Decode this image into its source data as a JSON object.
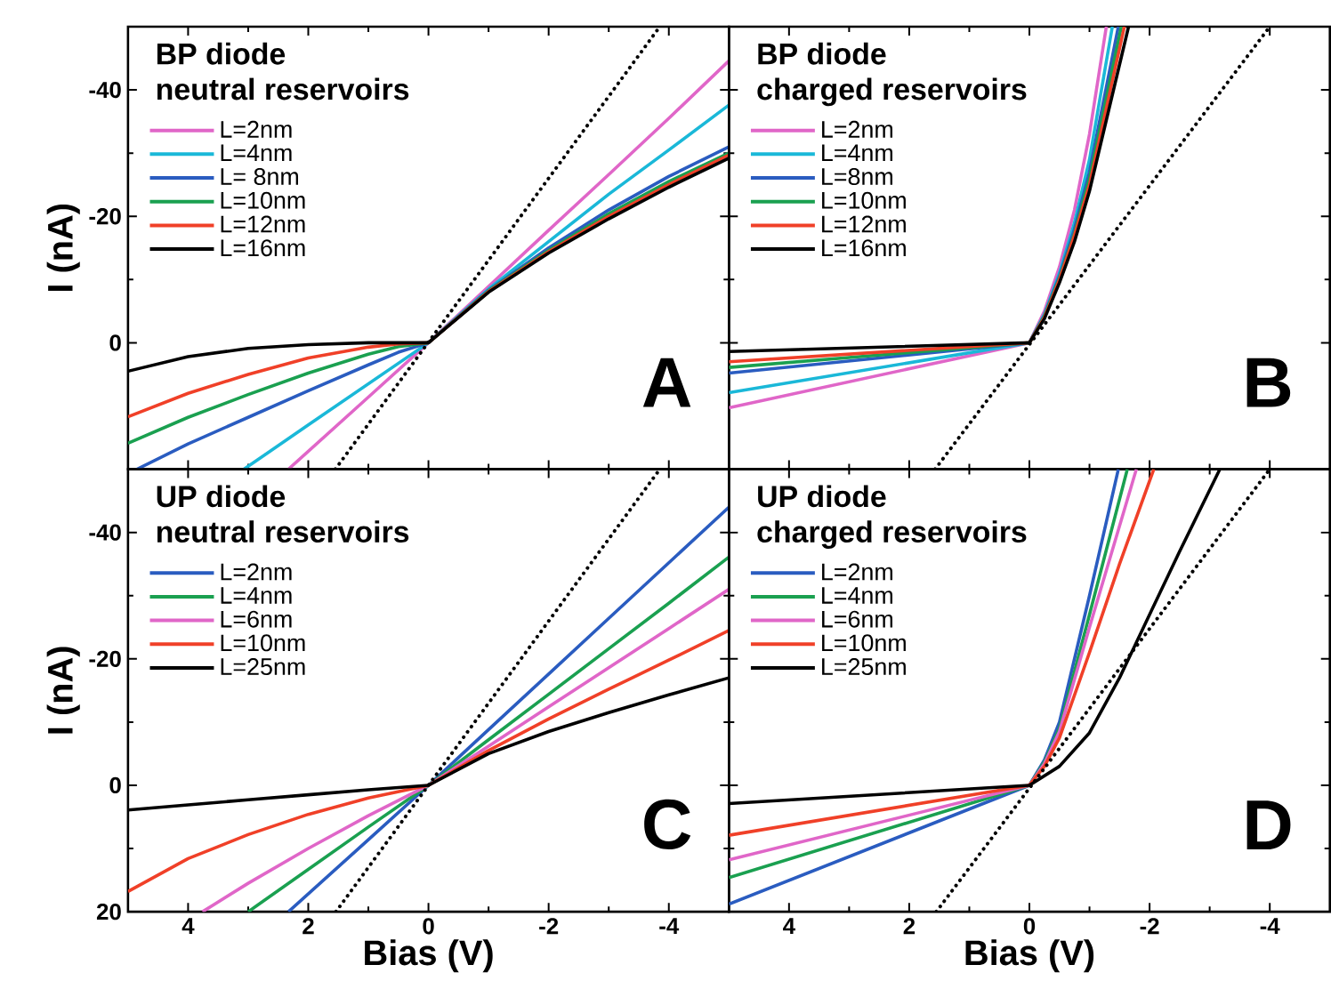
{
  "chart_data": [
    {
      "type": "line",
      "title": "BP diode",
      "subtitle": "neutral reservoirs",
      "ylabel": "I (nA)",
      "annotations": [
        "A"
      ],
      "xlim": [
        5,
        -5
      ],
      "ylim": [
        20,
        -50
      ],
      "xticks": [
        4,
        2,
        0,
        -2,
        -4
      ],
      "yticks": [
        -40,
        -20,
        0
      ],
      "tick_labels": "y",
      "legend": "top left",
      "series": [
        {
          "name": "L=2nm",
          "color": "#e066c8",
          "x": [
            2.33,
            1,
            0,
            -1,
            -2,
            -3,
            -4,
            -5
          ],
          "values": [
            20,
            8.6,
            0,
            -8.9,
            -17.8,
            -26.6,
            -35.5,
            -44.6
          ]
        },
        {
          "name": "L=4nm",
          "color": "#1ab8d8",
          "x": [
            3.07,
            2,
            1,
            0,
            -1,
            -2,
            -3,
            -4,
            -5
          ],
          "values": [
            20,
            13,
            6.5,
            0,
            -8.5,
            -16,
            -23.5,
            -30.5,
            -37.6
          ]
        },
        {
          "name": "L= 8nm",
          "color": "#2a5cc0",
          "x": [
            4.85,
            4,
            3,
            2,
            1,
            0.5,
            0,
            -1,
            -2,
            -3,
            -4,
            -5
          ],
          "values": [
            20,
            16,
            11.8,
            7.6,
            3.5,
            1.5,
            0,
            -8.3,
            -15,
            -21,
            -26.3,
            -31
          ]
        },
        {
          "name": "L=10nm",
          "color": "#1aa050",
          "x": [
            5,
            4,
            3,
            2,
            1,
            0.5,
            0,
            -1,
            -2,
            -3,
            -4,
            -5
          ],
          "values": [
            15.9,
            11.8,
            8.2,
            4.8,
            1.8,
            0.6,
            0,
            -8.2,
            -14.6,
            -20.4,
            -25.5,
            -30
          ]
        },
        {
          "name": "L=12nm",
          "color": "#f04028",
          "x": [
            5,
            4,
            3,
            2,
            1,
            0.5,
            0,
            -1,
            -2,
            -3,
            -4,
            -5
          ],
          "values": [
            11.7,
            8,
            5,
            2.4,
            0.7,
            0.2,
            0,
            -8.1,
            -14.4,
            -20,
            -25,
            -29.7
          ]
        },
        {
          "name": "L=16nm",
          "color": "#000000",
          "x": [
            5,
            4,
            3,
            2,
            1,
            0.5,
            0,
            -1,
            -2,
            -3,
            -4,
            -5
          ],
          "values": [
            4.5,
            2.2,
            0.9,
            0.3,
            0,
            0,
            0,
            -8,
            -14.2,
            -19.6,
            -24.6,
            -29.2
          ]
        },
        {
          "color": "#000000",
          "line_style": "dotted",
          "x": [
            1.55,
            -3.85
          ],
          "values": [
            20,
            -50
          ]
        }
      ]
    },
    {
      "type": "line",
      "title": "BP diode",
      "subtitle": "charged reservoirs",
      "annotations": [
        "B"
      ],
      "xlim": [
        5,
        -5
      ],
      "ylim": [
        20,
        -50
      ],
      "xticks": [
        4,
        2,
        0,
        -2,
        -4
      ],
      "yticks": [
        -40,
        -20,
        0
      ],
      "tick_labels": false,
      "legend": "top left",
      "series": [
        {
          "name": "L=2nm",
          "color": "#e066c8",
          "x": [
            5,
            0,
            -0.25,
            -0.5,
            -0.75,
            -1,
            -1.28
          ],
          "values": [
            10.3,
            0,
            -5,
            -12,
            -21,
            -33,
            -50
          ]
        },
        {
          "name": "L=4nm",
          "color": "#1ab8d8",
          "x": [
            5,
            0,
            -0.25,
            -0.5,
            -0.75,
            -1,
            -1.38
          ],
          "values": [
            7.9,
            0,
            -4.5,
            -11,
            -19,
            -29,
            -50
          ]
        },
        {
          "name": "L=8nm",
          "color": "#2a5cc0",
          "x": [
            5,
            0,
            -0.25,
            -0.5,
            -0.75,
            -1,
            -1.48
          ],
          "values": [
            4.8,
            0,
            -4.3,
            -10.5,
            -18,
            -27,
            -50
          ]
        },
        {
          "name": "L=10nm",
          "color": "#1aa050",
          "x": [
            5,
            0,
            -0.25,
            -0.5,
            -0.75,
            -1,
            -1.53
          ],
          "values": [
            3.9,
            0,
            -4.2,
            -10.2,
            -17.3,
            -26,
            -50
          ]
        },
        {
          "name": "L=12nm",
          "color": "#f04028",
          "x": [
            5,
            0,
            -0.25,
            -0.5,
            -0.75,
            -1,
            -1.58
          ],
          "values": [
            3,
            0,
            -4,
            -10,
            -17,
            -25,
            -50
          ]
        },
        {
          "name": "L=16nm",
          "color": "#000000",
          "x": [
            5,
            0,
            -0.25,
            -0.5,
            -0.75,
            -1,
            -1.65
          ],
          "values": [
            1.4,
            0,
            -3.8,
            -9.5,
            -16,
            -24,
            -50
          ]
        },
        {
          "color": "#000000",
          "line_style": "dotted",
          "x": [
            1.57,
            -4.0
          ],
          "values": [
            20,
            -50
          ]
        }
      ]
    },
    {
      "type": "line",
      "title": "UP diode",
      "subtitle": "neutral reservoirs",
      "xlabel": "Bias (V)",
      "ylabel": "I (nA)",
      "annotations": [
        "C"
      ],
      "xlim": [
        5,
        -5
      ],
      "ylim": [
        20,
        -50
      ],
      "xticks": [
        4,
        2,
        0,
        -2,
        -4
      ],
      "yticks": [
        -40,
        -20,
        0,
        20
      ],
      "legend": "top left",
      "series": [
        {
          "name": "L=2nm",
          "color": "#2a5cc0",
          "x": [
            2.33,
            1,
            0,
            -1,
            -2,
            -3,
            -4,
            -5
          ],
          "values": [
            20,
            8.6,
            0,
            -8.8,
            -17.6,
            -26.4,
            -35.2,
            -44
          ]
        },
        {
          "name": "L=4nm",
          "color": "#1aa050",
          "x": [
            3,
            2,
            1,
            0,
            -1,
            -2,
            -3,
            -4,
            -5
          ],
          "values": [
            20,
            13.3,
            6.6,
            0,
            -7.2,
            -14.4,
            -21.6,
            -28.8,
            -36.1
          ]
        },
        {
          "name": "L=6nm",
          "color": "#e066c8",
          "x": [
            3.76,
            3,
            2,
            1,
            0,
            -1,
            -2,
            -3,
            -4,
            -5
          ],
          "values": [
            20,
            15.5,
            10,
            4.8,
            0,
            -6.2,
            -12.4,
            -18.6,
            -24.8,
            -31
          ]
        },
        {
          "name": "L=10nm",
          "color": "#f04028",
          "x": [
            5,
            4,
            3,
            2,
            1,
            0,
            -1,
            -2,
            -3,
            -4,
            -5
          ],
          "values": [
            16.8,
            11.6,
            7.8,
            4.6,
            2,
            0,
            -5.5,
            -10.5,
            -15.2,
            -19.8,
            -24.5
          ]
        },
        {
          "name": "L=25nm",
          "color": "#000000",
          "x": [
            5,
            4,
            3,
            2,
            1,
            0,
            -1,
            -2,
            -3,
            -4,
            -5
          ],
          "values": [
            3.9,
            3.1,
            2.3,
            1.5,
            0.7,
            0,
            -5,
            -8.5,
            -11.5,
            -14.3,
            -17
          ]
        },
        {
          "color": "#000000",
          "line_style": "dotted",
          "x": [
            1.54,
            -3.85
          ],
          "values": [
            20,
            -50
          ]
        }
      ]
    },
    {
      "type": "line",
      "title": "UP diode",
      "subtitle": "charged reservoirs",
      "xlabel": "Bias (V)",
      "annotations": [
        "D"
      ],
      "xlim": [
        5,
        -5
      ],
      "ylim": [
        20,
        -50
      ],
      "xticks": [
        4,
        2,
        0,
        -2,
        -4
      ],
      "yticks": [
        -40,
        -20,
        0,
        20
      ],
      "tick_labels": "x",
      "legend": "top left",
      "series": [
        {
          "name": "L=2nm",
          "color": "#2a5cc0",
          "x": [
            5,
            0,
            -0.25,
            -0.5,
            -1,
            -1.48
          ],
          "values": [
            18.8,
            0,
            -4,
            -10,
            -30,
            -50
          ]
        },
        {
          "name": "L=4nm",
          "color": "#1aa050",
          "x": [
            5,
            0,
            -0.25,
            -0.5,
            -1,
            -1.63
          ],
          "values": [
            14.6,
            0,
            -3.7,
            -9,
            -27,
            -50
          ]
        },
        {
          "name": "L=6nm",
          "color": "#e066c8",
          "x": [
            5,
            0,
            -0.25,
            -0.5,
            -1,
            -1.78
          ],
          "values": [
            11.8,
            0,
            -3.4,
            -8.5,
            -25,
            -50
          ]
        },
        {
          "name": "L=10nm",
          "color": "#f04028",
          "x": [
            5,
            0,
            -0.25,
            -0.5,
            -1,
            -1.5,
            -2.07
          ],
          "values": [
            7.9,
            0,
            -3,
            -7.5,
            -21,
            -35,
            -50
          ]
        },
        {
          "name": "L=25nm",
          "color": "#000000",
          "x": [
            5,
            0,
            -0.5,
            -1,
            -1.5,
            -2,
            -2.5,
            -3.17
          ],
          "values": [
            2.9,
            0,
            -3,
            -8.3,
            -17,
            -27,
            -37,
            -50
          ]
        },
        {
          "color": "#000000",
          "line_style": "dotted",
          "x": [
            1.55,
            -4.0
          ],
          "values": [
            20,
            -50
          ]
        }
      ]
    }
  ]
}
